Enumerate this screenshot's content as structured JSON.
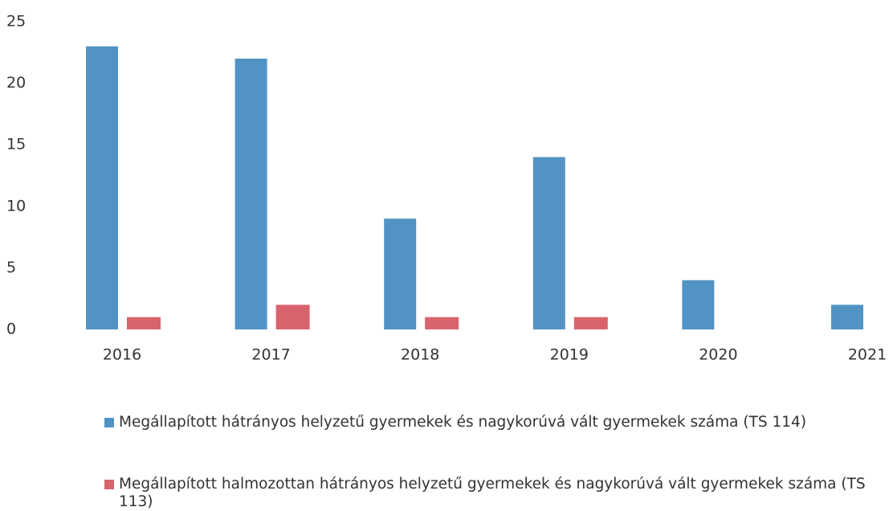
{
  "chart_data": {
    "type": "bar",
    "categories": [
      "2016",
      "2017",
      "2018",
      "2019",
      "2020",
      "2021"
    ],
    "series": [
      {
        "name": "Megállapított hátrányos helyzetű gyermekek és nagykorúvá vált gyermekek száma (TS 114)",
        "color": "#5293c5",
        "values": [
          23,
          22,
          9,
          14,
          4,
          2
        ]
      },
      {
        "name": "Megállapított halmozottan hátrányos helyzetű gyermekek és nagykorúvá vált gyermekek száma (TS 113)",
        "color": "#d9636d",
        "values": [
          1,
          2,
          1,
          1,
          0,
          0
        ]
      }
    ],
    "ylim": [
      0,
      25
    ],
    "yticks": [
      0,
      5,
      10,
      15,
      20,
      25
    ],
    "grid": false
  }
}
